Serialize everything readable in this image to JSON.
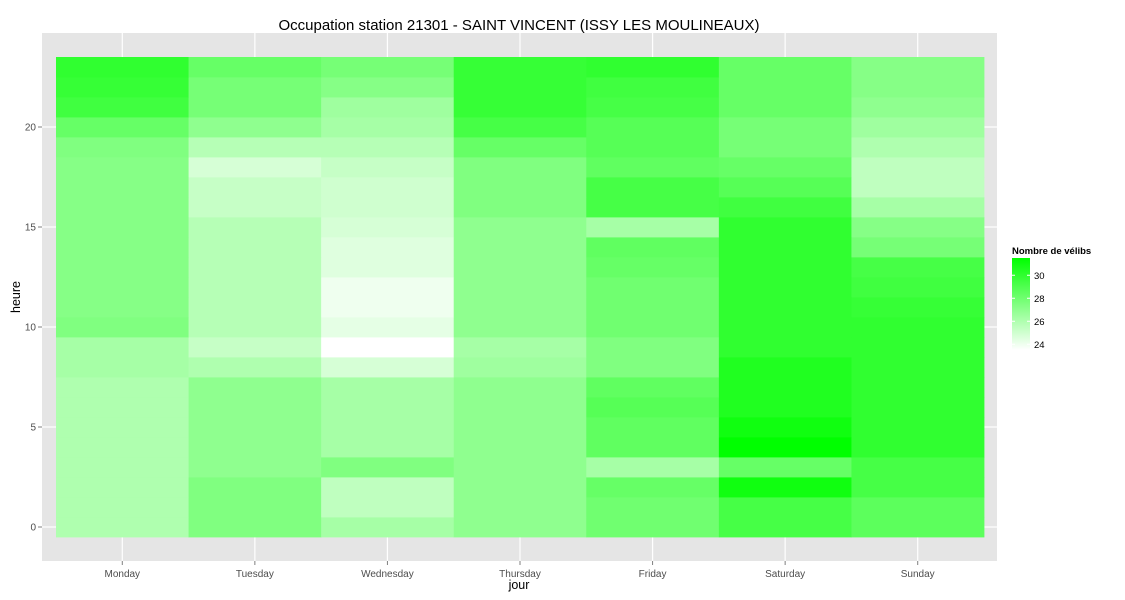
{
  "chart_data": {
    "type": "heatmap",
    "title": "Occupation station 21301 - SAINT VINCENT (ISSY LES MOULINEAUX)",
    "xlabel": "jour",
    "ylabel": "heure",
    "x": [
      "Monday",
      "Tuesday",
      "Wednesday",
      "Thursday",
      "Friday",
      "Saturday",
      "Sunday"
    ],
    "y": [
      0,
      1,
      2,
      3,
      4,
      5,
      6,
      7,
      8,
      9,
      10,
      11,
      12,
      13,
      14,
      15,
      16,
      17,
      18,
      19,
      20,
      21,
      22,
      23
    ],
    "y_ticks": [
      0,
      5,
      10,
      15,
      20
    ],
    "ylim": [
      -0.5,
      23.5
    ],
    "legend": {
      "title": "Nombre de vélibs",
      "ticks": [
        24,
        26,
        28,
        30
      ],
      "range": [
        23.5,
        31.5
      ],
      "low_color": "#ffffff",
      "high_color": "#00ff00",
      "position": "right"
    },
    "grid": true,
    "values": [
      [
        26.0,
        27.5,
        26.3,
        27.0,
        28.0,
        29.3,
        28.6
      ],
      [
        26.0,
        27.5,
        25.5,
        27.0,
        28.0,
        29.3,
        28.6
      ],
      [
        26.0,
        27.5,
        25.5,
        27.0,
        28.3,
        31.0,
        29.3
      ],
      [
        26.0,
        27.0,
        27.5,
        27.0,
        26.3,
        28.3,
        29.3
      ],
      [
        26.0,
        27.0,
        26.3,
        27.0,
        28.5,
        31.5,
        30.0
      ],
      [
        26.0,
        27.0,
        26.3,
        27.0,
        28.5,
        31.0,
        30.0
      ],
      [
        26.0,
        27.0,
        26.3,
        27.0,
        28.8,
        30.5,
        30.0
      ],
      [
        26.0,
        27.0,
        26.3,
        27.0,
        28.5,
        30.5,
        30.0
      ],
      [
        26.3,
        26.0,
        24.8,
        26.5,
        27.5,
        30.5,
        30.0
      ],
      [
        26.3,
        25.3,
        23.5,
        26.3,
        27.5,
        30.0,
        30.0
      ],
      [
        27.5,
        25.8,
        24.3,
        27.0,
        28.0,
        30.0,
        30.0
      ],
      [
        27.3,
        25.8,
        24.0,
        27.0,
        28.0,
        30.0,
        29.8
      ],
      [
        27.3,
        25.8,
        24.0,
        27.0,
        28.0,
        30.0,
        29.5
      ],
      [
        27.3,
        25.8,
        24.5,
        27.0,
        28.3,
        30.0,
        29.3
      ],
      [
        27.3,
        25.8,
        24.5,
        27.0,
        28.5,
        30.0,
        27.8
      ],
      [
        27.3,
        25.8,
        24.8,
        27.0,
        26.3,
        30.0,
        27.3
      ],
      [
        27.3,
        25.3,
        25.0,
        27.5,
        29.3,
        29.5,
        26.3
      ],
      [
        27.3,
        25.3,
        25.0,
        27.5,
        29.3,
        28.8,
        25.5
      ],
      [
        27.3,
        24.8,
        25.3,
        27.5,
        28.5,
        28.3,
        25.5
      ],
      [
        27.5,
        25.8,
        25.8,
        28.3,
        28.8,
        27.8,
        26.0
      ],
      [
        28.3,
        27.0,
        26.3,
        29.3,
        28.8,
        27.8,
        26.5
      ],
      [
        29.5,
        27.8,
        26.5,
        29.8,
        29.3,
        28.3,
        27.0
      ],
      [
        29.8,
        27.8,
        27.3,
        29.8,
        29.5,
        28.3,
        27.3
      ],
      [
        30.0,
        28.3,
        27.8,
        29.8,
        30.0,
        28.3,
        27.3
      ]
    ]
  }
}
